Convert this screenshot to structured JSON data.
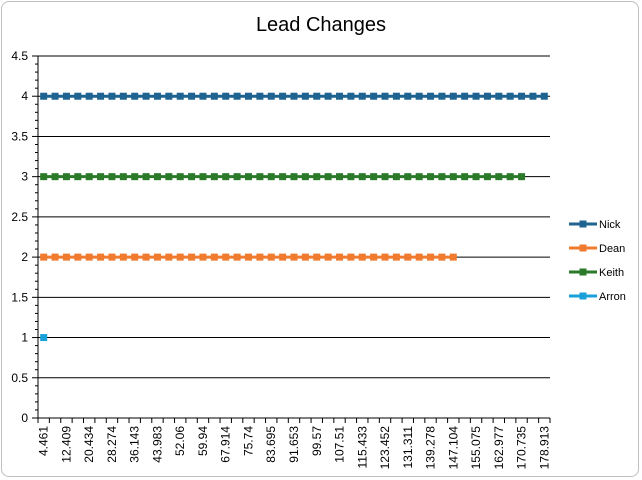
{
  "chart_data": {
    "type": "line",
    "title": "Lead Changes",
    "xlabel": "",
    "ylabel": "",
    "ylim": [
      0,
      4.5
    ],
    "yticks": [
      "0",
      "0.5",
      "1",
      "1.5",
      "2",
      "2.5",
      "3",
      "3.5",
      "4",
      "4.5"
    ],
    "grid": "horizontal",
    "legend": "right",
    "x_tick_labels": [
      "4.461",
      "12.409",
      "20.434",
      "28.274",
      "36.143",
      "43.983",
      "52.06",
      "59.94",
      "67.914",
      "75.74",
      "83.695",
      "91.653",
      "99.57",
      "107.51",
      "115.433",
      "123.452",
      "131.311",
      "139.278",
      "147.104",
      "155.075",
      "162.977",
      "170.735",
      "178.913"
    ],
    "n_categories": 45,
    "series": [
      {
        "name": "Nick",
        "color": "#1f6391",
        "value": 4,
        "count": 45
      },
      {
        "name": "Dean",
        "color": "#f07a2e",
        "value": 2,
        "count": 37
      },
      {
        "name": "Keith",
        "color": "#2a7a2a",
        "value": 3,
        "count": 43
      },
      {
        "name": "Arron",
        "color": "#1aa0d8",
        "value": 1,
        "count": 1
      }
    ]
  }
}
